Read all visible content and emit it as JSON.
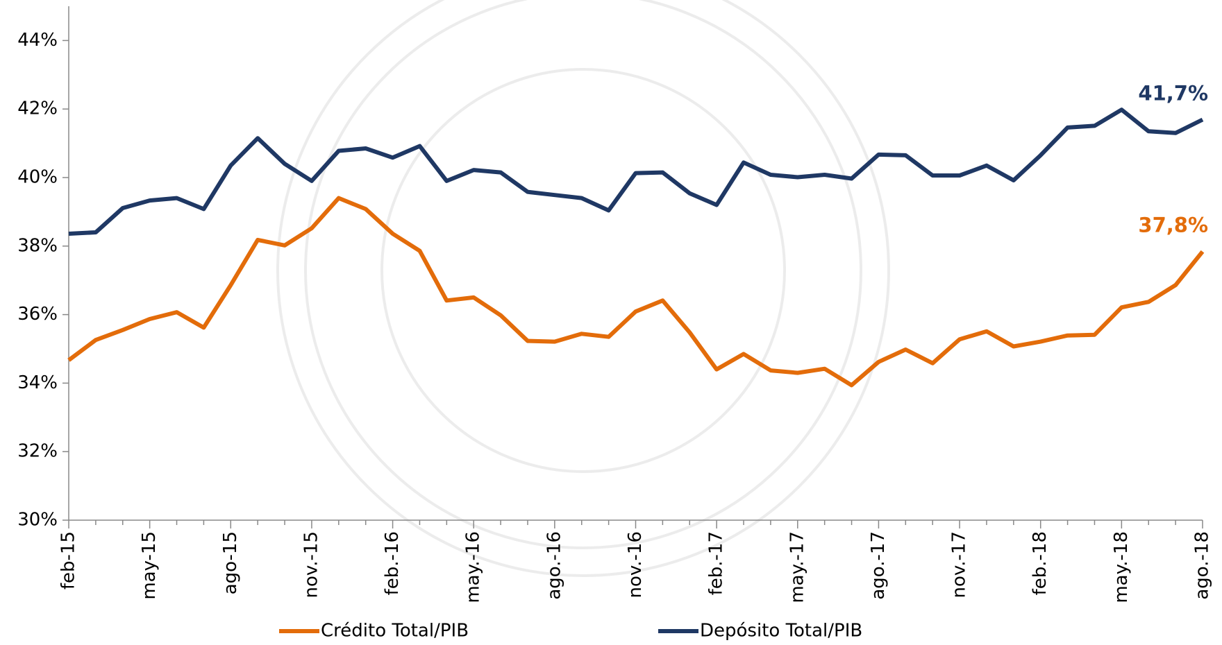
{
  "chart_data": {
    "type": "line",
    "categories": [
      "feb-15",
      null,
      null,
      "may-15",
      null,
      null,
      "ago-15",
      null,
      null,
      "nov.-15",
      null,
      null,
      "feb.-16",
      null,
      null,
      "may.-16",
      null,
      null,
      "ago.-16",
      null,
      null,
      "nov.-16",
      null,
      null,
      "feb.-17",
      null,
      null,
      "may.-17",
      null,
      null,
      "ago.-17",
      null,
      null,
      "nov.-17",
      null,
      null,
      "feb.-18",
      null,
      null,
      "may.-18",
      null,
      null,
      "ago.-18"
    ],
    "series": [
      {
        "name": "Crédito Total/PIB",
        "color": "#e36c0a",
        "end_label": "37,8%",
        "values": [
          34.67,
          35.26,
          35.55,
          35.87,
          36.07,
          35.62,
          36.86,
          38.18,
          38.02,
          38.52,
          39.4,
          39.08,
          38.36,
          37.86,
          36.41,
          36.5,
          35.98,
          35.23,
          35.21,
          35.44,
          35.35,
          36.09,
          36.41,
          35.48,
          34.4,
          34.85,
          34.37,
          34.3,
          34.42,
          33.94,
          34.62,
          34.98,
          34.58,
          35.28,
          35.51,
          35.07,
          35.21,
          35.39,
          35.41,
          36.21,
          36.37,
          36.86,
          37.84
        ]
      },
      {
        "name": "Depósito Total/PIB",
        "color": "#1f3864",
        "end_label": "41,7%",
        "values": [
          38.36,
          38.4,
          39.11,
          39.33,
          39.4,
          39.08,
          40.35,
          41.15,
          40.4,
          39.9,
          40.78,
          40.85,
          40.58,
          40.92,
          39.9,
          40.22,
          40.15,
          39.58,
          39.49,
          39.4,
          39.04,
          40.13,
          40.15,
          39.54,
          39.2,
          40.44,
          40.08,
          40.01,
          40.08,
          39.97,
          40.67,
          40.65,
          40.06,
          40.06,
          40.35,
          39.92,
          40.65,
          41.46,
          41.51,
          41.98,
          41.35,
          41.3,
          41.69
        ]
      }
    ],
    "ylim": [
      30,
      45
    ],
    "yticks": [
      {
        "value": 30,
        "label": "30%"
      },
      {
        "value": 32,
        "label": "32%"
      },
      {
        "value": 34,
        "label": "34%"
      },
      {
        "value": 36,
        "label": "36%"
      },
      {
        "value": 38,
        "label": "38%"
      },
      {
        "value": 40,
        "label": "40%"
      },
      {
        "value": 42,
        "label": "42%"
      },
      {
        "value": 44,
        "label": "44%"
      }
    ],
    "grid": false
  }
}
